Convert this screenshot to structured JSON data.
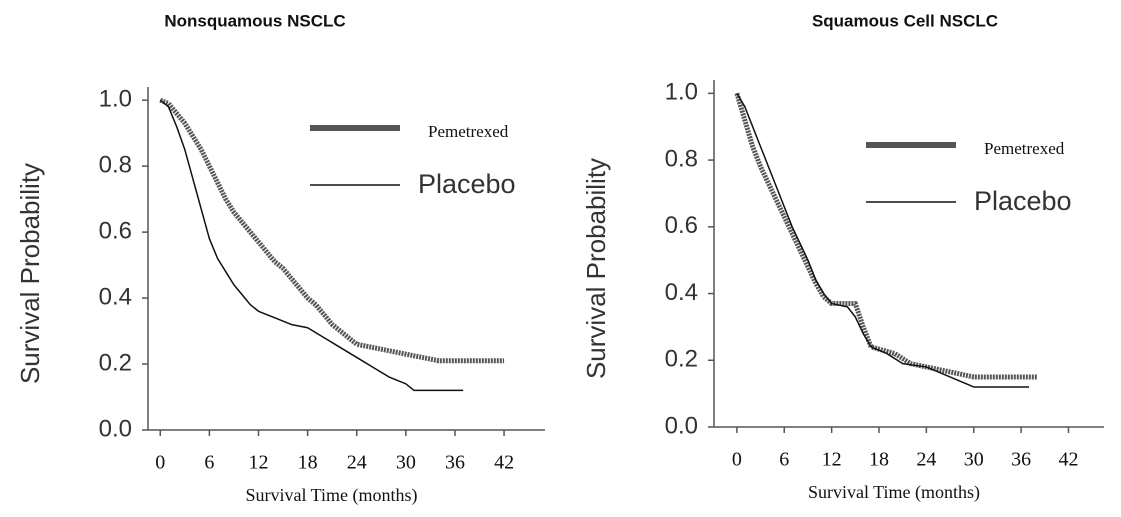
{
  "chart_data": [
    {
      "type": "line",
      "title": "Nonsquamous NSCLC",
      "xlabel": "Survival Time (months)",
      "ylabel": "Survival Probability",
      "xlim": [
        -1.5,
        47
      ],
      "ylim": [
        0,
        1.04
      ],
      "xticks": [
        0,
        6,
        12,
        18,
        24,
        30,
        36,
        42
      ],
      "yticks": [
        {
          "value": 0,
          "label": "0.0"
        },
        0.2,
        0.4,
        0.6,
        0.8,
        {
          "value": 1,
          "label": "1.0"
        }
      ],
      "legend": "upper right",
      "series": [
        {
          "name": "Pemetrexed",
          "color": "#555555",
          "x": [
            0,
            1,
            2,
            3,
            4,
            5,
            6,
            7,
            8,
            9,
            10,
            11,
            12,
            13,
            14,
            15,
            16,
            17,
            18,
            19,
            20,
            21,
            22,
            23,
            24,
            26,
            28,
            30,
            32,
            34,
            42
          ],
          "values": [
            1.0,
            0.99,
            0.96,
            0.93,
            0.89,
            0.85,
            0.8,
            0.75,
            0.7,
            0.66,
            0.63,
            0.6,
            0.57,
            0.54,
            0.51,
            0.49,
            0.46,
            0.43,
            0.4,
            0.38,
            0.35,
            0.32,
            0.3,
            0.28,
            0.26,
            0.25,
            0.24,
            0.23,
            0.22,
            0.21,
            0.21
          ]
        },
        {
          "name": "Placebo",
          "color": "#111111",
          "x": [
            0,
            1,
            2,
            3,
            4,
            5,
            6,
            7,
            8,
            9,
            10,
            11,
            12,
            14,
            16,
            18,
            20,
            22,
            24,
            26,
            28,
            30,
            31,
            37
          ],
          "values": [
            1.0,
            0.98,
            0.92,
            0.85,
            0.76,
            0.67,
            0.58,
            0.52,
            0.48,
            0.44,
            0.41,
            0.38,
            0.36,
            0.34,
            0.32,
            0.31,
            0.28,
            0.25,
            0.22,
            0.19,
            0.16,
            0.14,
            0.12,
            0.12
          ]
        }
      ]
    },
    {
      "type": "line",
      "title": "Squamous Cell NSCLC",
      "xlabel": "Survival Time (months)",
      "ylabel": "Survival Probability",
      "xlim": [
        -2.9,
        46.5
      ],
      "ylim": [
        0,
        1.04
      ],
      "xticks": [
        0,
        6,
        12,
        18,
        24,
        30,
        36,
        42
      ],
      "yticks": [
        {
          "value": 0,
          "label": "0.0"
        },
        0.2,
        0.4,
        0.6,
        0.8,
        {
          "value": 1,
          "label": "1.0"
        }
      ],
      "legend": "upper right",
      "series": [
        {
          "name": "Pemetrexed",
          "color": "#555555",
          "x": [
            0,
            1,
            2,
            3,
            4,
            5,
            6,
            7,
            8,
            9,
            10,
            11,
            12,
            15,
            16,
            17,
            20,
            22,
            26,
            30,
            38
          ],
          "values": [
            1.0,
            0.92,
            0.84,
            0.78,
            0.73,
            0.68,
            0.63,
            0.58,
            0.53,
            0.48,
            0.43,
            0.39,
            0.37,
            0.37,
            0.3,
            0.24,
            0.22,
            0.19,
            0.17,
            0.15,
            0.15
          ]
        },
        {
          "name": "Placebo",
          "color": "#111111",
          "x": [
            0,
            1,
            2,
            3,
            4,
            5,
            6,
            7,
            8,
            9,
            10,
            11,
            12,
            14,
            15,
            16,
            17,
            19,
            21,
            24,
            27,
            30,
            37
          ],
          "values": [
            1.0,
            0.96,
            0.9,
            0.84,
            0.78,
            0.72,
            0.66,
            0.6,
            0.55,
            0.5,
            0.44,
            0.4,
            0.37,
            0.36,
            0.33,
            0.28,
            0.24,
            0.22,
            0.19,
            0.18,
            0.15,
            0.12,
            0.12
          ]
        }
      ]
    }
  ]
}
